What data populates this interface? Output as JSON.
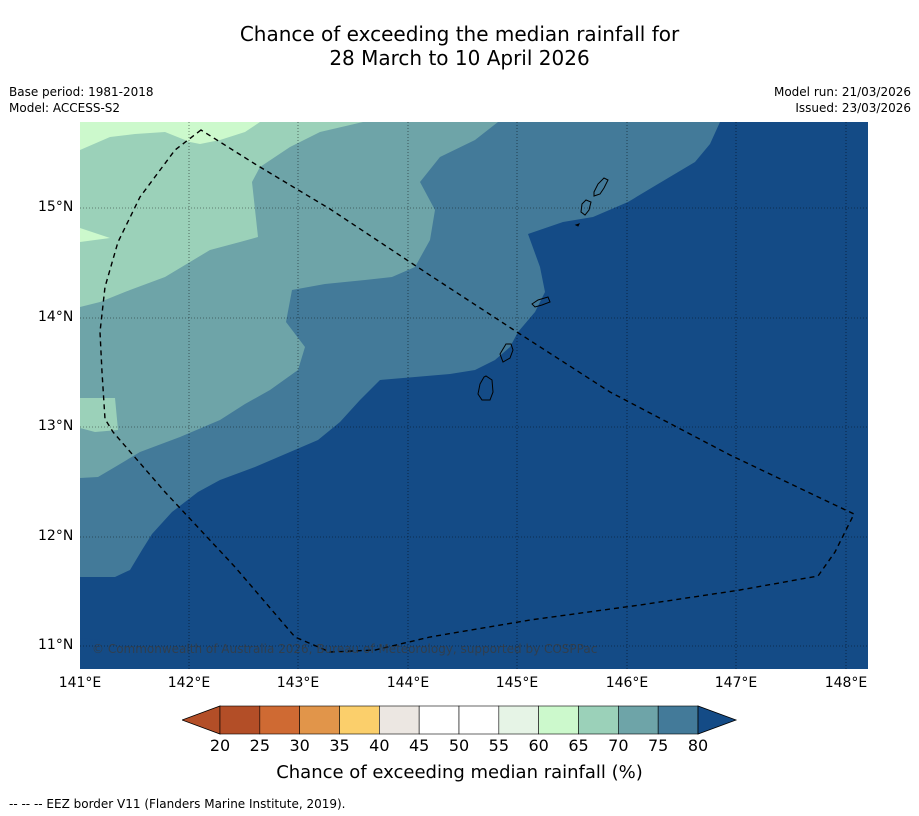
{
  "title_line1": "Chance of exceeding the median rainfall for",
  "title_line2": "28 March to 10 April 2026",
  "base_period": "Base period: 1981-2018",
  "model": "Model: ACCESS-S2",
  "model_run": "Model run: 21/03/2026",
  "issued": "Issued: 23/03/2026",
  "copyright": "© Commonwealth of Australia 2026, Bureau of Meteorology, supported by COSPPac",
  "latitudes": [
    "15°N",
    "14°N",
    "13°N",
    "12°N",
    "11°N"
  ],
  "longitudes": [
    "141°E",
    "142°E",
    "143°E",
    "144°E",
    "145°E",
    "146°E",
    "147°E",
    "148°E"
  ],
  "colorbar": {
    "title": "Chance of exceeding median rainfall (%)",
    "ticks": [
      "20",
      "25",
      "30",
      "35",
      "40",
      "45",
      "50",
      "55",
      "60",
      "65",
      "70",
      "75",
      "80"
    ],
    "colors": [
      "#b34e27",
      "#b34e27",
      "#cf6a33",
      "#e1954a",
      "#fbcf6b",
      "#ece7e2",
      "#ffffff",
      "#ffffff",
      "#e6f4e6",
      "#ccf9cc",
      "#9bd1b9",
      "#6ea4a8",
      "#437a99",
      "#144b86"
    ]
  },
  "footnote": "--  --  -- EEZ border V11 (Flanders Marine Institute, 2019)."
}
